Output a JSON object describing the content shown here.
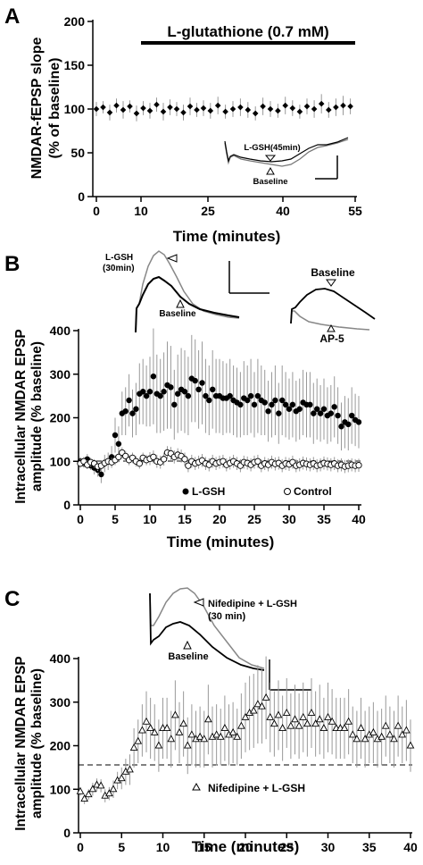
{
  "chart_data": [
    {
      "panel_label": "A",
      "type": "scatter",
      "title": "",
      "xlabel": "Time (minutes)",
      "ylabel_line1": "NMDAR-fEPSP slope",
      "ylabel_line2": "(% of baseline)",
      "x_ticks": [
        "0",
        "10",
        "25",
        "40",
        "55"
      ],
      "y_ticks": [
        "0",
        "50",
        "100",
        "150",
        "200"
      ],
      "ylim": [
        0,
        200
      ],
      "bar_label": "L-glutathione (0.7 mM)",
      "bar_start": 10,
      "bar_end": 55,
      "inset_labels": {
        "top": "L-GSH(45min)",
        "bottom": "Baseline"
      },
      "series": [
        {
          "name": "",
          "marker": "filled-diamond",
          "x": [
            0,
            1.5,
            3,
            4.5,
            6,
            7.5,
            9,
            10.5,
            12,
            13.5,
            15,
            16.5,
            18,
            19.5,
            21,
            22.5,
            24,
            25.5,
            27,
            28.5,
            30,
            31.5,
            33,
            34.5,
            36,
            37.5,
            39,
            40.5,
            42,
            43.5,
            45,
            46.5,
            48,
            49.5,
            51,
            52.5,
            54
          ],
          "y": [
            100,
            102,
            96,
            104,
            99,
            103,
            95,
            101,
            98,
            105,
            97,
            102,
            100,
            96,
            103,
            99,
            101,
            98,
            104,
            97,
            100,
            102,
            99,
            95,
            103,
            100,
            98,
            104,
            101,
            97,
            103,
            100,
            106,
            99,
            102,
            104,
            103
          ],
          "err": [
            8,
            7,
            9,
            8,
            10,
            7,
            9,
            8,
            9,
            8,
            10,
            9,
            8,
            9,
            10,
            8,
            9,
            9,
            10,
            8,
            9,
            10,
            9,
            8,
            10,
            9,
            8,
            10,
            9,
            8,
            9,
            10,
            11,
            9,
            10,
            11,
            9
          ]
        }
      ]
    },
    {
      "panel_label": "B",
      "type": "scatter",
      "title": "",
      "xlabel": "Time (minutes)",
      "ylabel_line1": "Intracellular NMDAR EPSP",
      "ylabel_line2": "amplitude (% baseline)",
      "x_ticks": [
        "0",
        "5",
        "10",
        "15",
        "20",
        "25",
        "30",
        "35",
        "40"
      ],
      "y_ticks": [
        "0",
        "100",
        "200",
        "300",
        "400"
      ],
      "ylim": [
        0,
        400
      ],
      "xlim": [
        0,
        40
      ],
      "inset_labels": {
        "lgsh": "L-GSH",
        "lgsh_time": "(30min)",
        "baseline": "Baseline",
        "baseline2": "Baseline",
        "ap5": "AP-5"
      },
      "series": [
        {
          "name": "L-GSH",
          "marker": "filled-circle",
          "x": [
            0,
            0.5,
            1,
            1.5,
            2,
            2.5,
            3,
            3.5,
            4,
            4.5,
            5,
            5.5,
            6,
            6.5,
            7,
            7.5,
            8,
            8.5,
            9,
            9.5,
            10,
            10.5,
            11,
            11.5,
            12,
            12.5,
            13,
            13.5,
            14,
            14.5,
            15,
            15.5,
            16,
            16.5,
            17,
            17.5,
            18,
            18.5,
            19,
            19.5,
            20,
            20.5,
            21,
            21.5,
            22,
            22.5,
            23,
            23.5,
            24,
            24.5,
            25,
            25.5,
            26,
            26.5,
            27,
            27.5,
            28,
            28.5,
            29,
            29.5,
            30,
            30.5,
            31,
            31.5,
            32,
            32.5,
            33,
            33.5,
            34,
            34.5,
            35,
            35.5,
            36,
            36.5,
            37,
            37.5,
            38,
            38.5,
            39,
            39.5,
            40
          ],
          "y": [
            100,
            95,
            105,
            90,
            85,
            80,
            70,
            95,
            100,
            110,
            160,
            140,
            210,
            215,
            240,
            210,
            220,
            255,
            260,
            250,
            260,
            295,
            255,
            250,
            260,
            275,
            270,
            230,
            255,
            265,
            260,
            250,
            290,
            285,
            265,
            280,
            250,
            240,
            265,
            250,
            250,
            245,
            245,
            250,
            240,
            235,
            230,
            245,
            240,
            250,
            230,
            250,
            240,
            235,
            215,
            230,
            240,
            210,
            240,
            230,
            220,
            230,
            215,
            220,
            235,
            230,
            230,
            210,
            220,
            210,
            220,
            205,
            210,
            225,
            205,
            180,
            190,
            185,
            205,
            195,
            190
          ],
          "err": [
            10,
            10,
            12,
            10,
            15,
            15,
            20,
            20,
            20,
            25,
            40,
            40,
            50,
            55,
            60,
            55,
            60,
            70,
            75,
            70,
            80,
            110,
            90,
            85,
            90,
            100,
            95,
            80,
            90,
            95,
            95,
            90,
            100,
            95,
            90,
            95,
            85,
            80,
            90,
            85,
            85,
            85,
            80,
            85,
            80,
            80,
            75,
            85,
            80,
            85,
            75,
            85,
            80,
            75,
            70,
            75,
            80,
            70,
            80,
            75,
            70,
            75,
            70,
            70,
            75,
            75,
            75,
            70,
            70,
            65,
            70,
            65,
            65,
            70,
            65,
            55,
            60,
            60,
            65,
            60,
            60
          ]
        },
        {
          "name": "Control",
          "marker": "open-circle",
          "x": [
            0,
            0.5,
            1,
            1.5,
            2,
            2.5,
            3,
            3.5,
            4,
            4.5,
            5,
            5.5,
            6,
            6.5,
            7,
            7.5,
            8,
            8.5,
            9,
            9.5,
            10,
            10.5,
            11,
            11.5,
            12,
            12.5,
            13,
            13.5,
            14,
            14.5,
            15,
            15.5,
            16,
            16.5,
            17,
            17.5,
            18,
            18.5,
            19,
            19.5,
            20,
            20.5,
            21,
            21.5,
            22,
            22.5,
            23,
            23.5,
            24,
            24.5,
            25,
            25.5,
            26,
            26.5,
            27,
            27.5,
            28,
            28.5,
            29,
            29.5,
            30,
            30.5,
            31,
            31.5,
            32,
            32.5,
            33,
            33.5,
            34,
            34.5,
            35,
            35.5,
            36,
            36.5,
            37,
            37.5,
            38,
            38.5,
            39,
            39.5,
            40
          ],
          "y": [
            95,
            100,
            92,
            98,
            95,
            88,
            90,
            96,
            100,
            98,
            103,
            110,
            120,
            112,
            103,
            108,
            100,
            95,
            108,
            103,
            106,
            110,
            100,
            98,
            105,
            120,
            118,
            110,
            115,
            112,
            105,
            90,
            100,
            95,
            98,
            102,
            95,
            92,
            100,
            95,
            98,
            100,
            92,
            96,
            100,
            95,
            90,
            98,
            96,
            92,
            98,
            100,
            90,
            95,
            92,
            98,
            94,
            96,
            90,
            95,
            93,
            98,
            90,
            92,
            96,
            94,
            92,
            95,
            90,
            92,
            96,
            94,
            92,
            95,
            90,
            92,
            88,
            90,
            92,
            90,
            91
          ],
          "err": [
            10,
            10,
            10,
            10,
            10,
            10,
            10,
            10,
            10,
            10,
            12,
            12,
            12,
            12,
            12,
            12,
            12,
            12,
            12,
            12,
            15,
            15,
            15,
            15,
            15,
            15,
            15,
            15,
            15,
            15,
            15,
            15,
            15,
            15,
            15,
            15,
            15,
            15,
            15,
            15,
            15,
            15,
            15,
            15,
            15,
            15,
            15,
            15,
            15,
            15,
            15,
            15,
            15,
            15,
            15,
            15,
            15,
            15,
            15,
            15,
            15,
            15,
            15,
            15,
            15,
            15,
            15,
            15,
            15,
            15,
            15,
            15,
            15,
            15,
            15,
            15,
            15,
            15,
            15,
            15,
            15
          ]
        }
      ]
    },
    {
      "panel_label": "C",
      "type": "scatter",
      "title": "",
      "xlabel": "Time (minutes)",
      "ylabel_line1": "Intracellular NMDAR EPSP",
      "ylabel_line2": "amplitude (% baseline)",
      "x_ticks": [
        "0",
        "5",
        "10",
        "15",
        "20",
        "25",
        "30",
        "35",
        "40"
      ],
      "y_ticks": [
        "0",
        "100",
        "200",
        "300",
        "400"
      ],
      "ylim": [
        0,
        400
      ],
      "xlim": [
        0,
        40
      ],
      "inset_labels": {
        "treat": "Nifedipine + L-GSH",
        "treat_time": "(30 min)",
        "baseline": "Baseline"
      },
      "series": [
        {
          "name": "Nifedipine + L-GSH",
          "marker": "open-triangle",
          "x": [
            0,
            0.5,
            1,
            1.5,
            2,
            2.5,
            3,
            3.5,
            4,
            4.5,
            5,
            5.5,
            6,
            6.5,
            7,
            7.5,
            8,
            8.5,
            9,
            9.5,
            10,
            10.5,
            11,
            11.5,
            12,
            12.5,
            13,
            13.5,
            14,
            14.5,
            15,
            15.5,
            16,
            16.5,
            17,
            17.5,
            18,
            18.5,
            19,
            19.5,
            20,
            20.5,
            21,
            21.5,
            22,
            22.5,
            23,
            23.5,
            24,
            24.5,
            25,
            25.5,
            26,
            26.5,
            27,
            27.5,
            28,
            28.5,
            29,
            29.5,
            30,
            30.5,
            31,
            31.5,
            32,
            32.5,
            33,
            33.5,
            34,
            34.5,
            35,
            35.5,
            36,
            36.5,
            37,
            37.5,
            38,
            38.5,
            39,
            39.5,
            40
          ],
          "y": [
            95,
            78,
            88,
            100,
            110,
            108,
            85,
            90,
            100,
            120,
            125,
            140,
            145,
            195,
            210,
            235,
            255,
            240,
            230,
            200,
            240,
            240,
            215,
            270,
            230,
            250,
            200,
            225,
            215,
            220,
            215,
            260,
            220,
            225,
            220,
            240,
            225,
            230,
            220,
            245,
            265,
            275,
            280,
            295,
            290,
            310,
            265,
            250,
            270,
            240,
            275,
            245,
            260,
            245,
            265,
            250,
            275,
            250,
            260,
            240,
            265,
            255,
            240,
            240,
            240,
            255,
            225,
            215,
            240,
            215,
            225,
            230,
            215,
            220,
            245,
            225,
            215,
            245,
            225,
            235,
            200
          ],
          "err": [
            10,
            12,
            12,
            15,
            15,
            15,
            15,
            15,
            20,
            20,
            25,
            30,
            35,
            45,
            50,
            60,
            70,
            70,
            65,
            60,
            70,
            70,
            65,
            80,
            70,
            75,
            65,
            70,
            65,
            70,
            65,
            80,
            70,
            70,
            65,
            75,
            70,
            70,
            65,
            75,
            80,
            85,
            85,
            90,
            85,
            95,
            80,
            75,
            80,
            75,
            80,
            75,
            80,
            75,
            80,
            75,
            80,
            75,
            80,
            70,
            80,
            75,
            70,
            70,
            70,
            75,
            65,
            65,
            70,
            65,
            65,
            70,
            65,
            65,
            70,
            65,
            65,
            70,
            65,
            70,
            60
          ]
        }
      ]
    }
  ]
}
